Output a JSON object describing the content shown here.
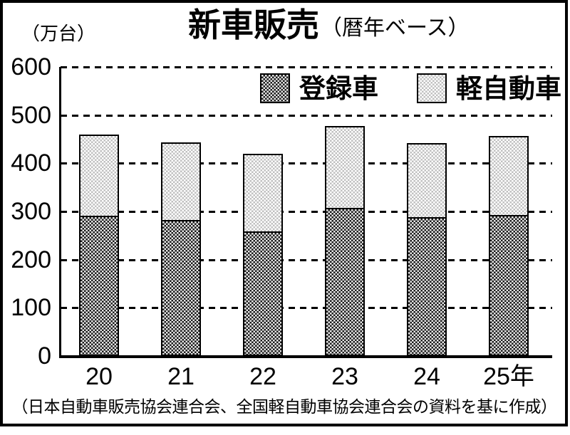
{
  "title": {
    "main": "新車販売",
    "sub": "（暦年ベース）"
  },
  "y_axis": {
    "unit_label": "（万台）"
  },
  "footer": "（日本自動車販売協会連合会、全国軽自動車協会連合会の資料を基に作成）",
  "colors": {
    "frame": "#000000",
    "background": "#ffffff",
    "registered_pattern_dark": "#1c1c1c",
    "registered_pattern_light": "#e6e6e6",
    "kei_pattern_dark": "#c0c0c0",
    "kei_pattern_light": "#ffffff"
  },
  "chart_data": {
    "type": "bar",
    "stacked": true,
    "title": "新車販売（暦年ベース）",
    "ylabel": "万台",
    "ylim": [
      0,
      600
    ],
    "yticks": [
      0,
      100,
      200,
      300,
      400,
      500,
      600
    ],
    "grid": "dashed horizontal gridlines at every 100",
    "legend_position": "top inside plot",
    "categories": [
      "20",
      "21",
      "22",
      "23",
      "24",
      "25年"
    ],
    "series": [
      {
        "name": "登録車",
        "values": [
          288,
          279,
          256,
          304,
          285,
          290
        ]
      },
      {
        "name": "軽自動車",
        "values": [
          172,
          165,
          164,
          174,
          157,
          167
        ]
      }
    ],
    "totals": [
      460,
      444,
      420,
      478,
      442,
      457
    ]
  }
}
